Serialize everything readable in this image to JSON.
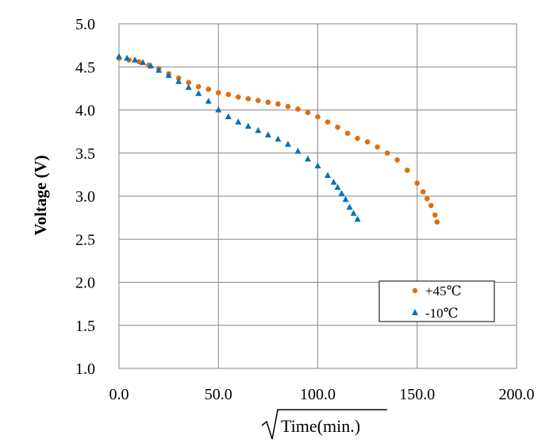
{
  "chart_data": {
    "type": "scatter",
    "xlabel": "Time(min.)",
    "ylabel": "Voltage (V)",
    "xlim": [
      0,
      200
    ],
    "ylim": [
      1.0,
      5.0
    ],
    "x_ticks": [
      "0.0",
      "50.0",
      "100.0",
      "150.0",
      "200.0"
    ],
    "y_ticks": [
      "1.0",
      "1.5",
      "2.0",
      "2.5",
      "3.0",
      "3.5",
      "4.0",
      "4.5",
      "5.0"
    ],
    "grid": true,
    "legend_position": "lower-right",
    "series": [
      {
        "name": "+45℃",
        "color": "#E46C0A",
        "marker": "circle",
        "x": [
          0,
          5,
          10,
          15,
          20,
          25,
          30,
          35,
          40,
          45,
          50,
          55,
          60,
          65,
          70,
          75,
          80,
          85,
          90,
          95,
          100,
          105,
          110,
          115,
          120,
          125,
          130,
          135,
          140,
          145,
          150,
          153,
          155,
          157,
          159,
          160
        ],
        "y": [
          4.6,
          4.58,
          4.56,
          4.52,
          4.48,
          4.42,
          4.37,
          4.32,
          4.27,
          4.24,
          4.2,
          4.18,
          4.15,
          4.13,
          4.11,
          4.09,
          4.07,
          4.04,
          4.01,
          3.97,
          3.92,
          3.86,
          3.8,
          3.73,
          3.67,
          3.63,
          3.57,
          3.5,
          3.42,
          3.3,
          3.15,
          3.05,
          2.97,
          2.89,
          2.78,
          2.7
        ]
      },
      {
        "name": "-10℃",
        "color": "#0070C0",
        "marker": "triangle",
        "x": [
          0,
          4,
          8,
          12,
          16,
          20,
          25,
          30,
          35,
          40,
          45,
          50,
          55,
          60,
          65,
          70,
          75,
          80,
          85,
          90,
          95,
          100,
          105,
          108,
          110,
          112,
          114,
          116,
          118,
          120
        ],
        "y": [
          4.62,
          4.6,
          4.58,
          4.55,
          4.51,
          4.46,
          4.4,
          4.33,
          4.26,
          4.19,
          4.1,
          4.0,
          3.92,
          3.86,
          3.81,
          3.76,
          3.71,
          3.66,
          3.6,
          3.52,
          3.43,
          3.35,
          3.24,
          3.16,
          3.1,
          3.03,
          2.96,
          2.87,
          2.8,
          2.73
        ]
      }
    ]
  }
}
